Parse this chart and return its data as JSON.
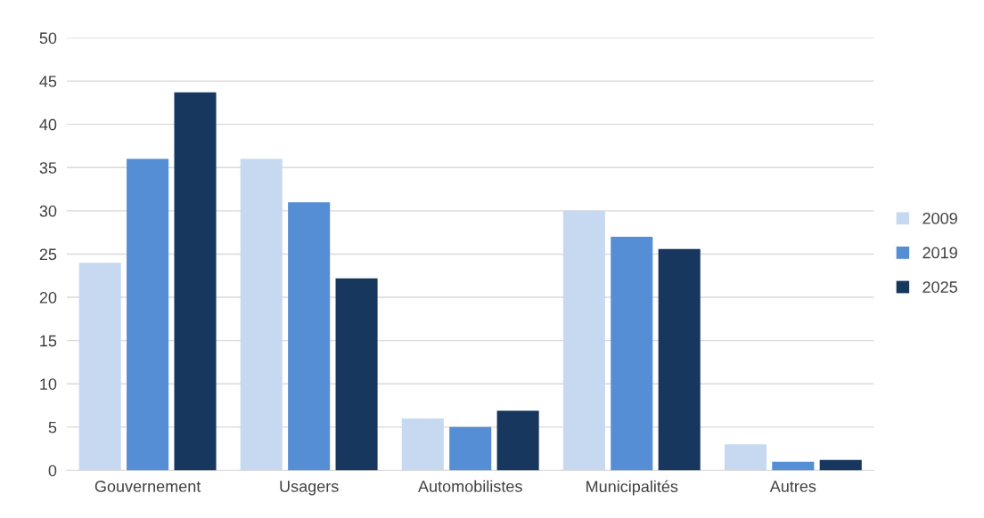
{
  "chart_data": {
    "type": "bar",
    "categories": [
      "Gouvernement",
      "Usagers",
      "Automobilistes",
      "Municipalités",
      "Autres"
    ],
    "series": [
      {
        "name": "2009",
        "color": "#c6d9f1",
        "values": [
          24,
          36,
          6,
          30,
          3
        ]
      },
      {
        "name": "2019",
        "color": "#558ed5",
        "values": [
          36,
          31,
          5,
          27,
          1
        ]
      },
      {
        "name": "2025",
        "color": "#17375e",
        "values": [
          43.7,
          22.2,
          6.9,
          25.6,
          1.2
        ]
      }
    ],
    "ylim": [
      0,
      50
    ],
    "yticks": [
      0,
      5,
      10,
      15,
      20,
      25,
      30,
      35,
      40,
      45,
      50
    ],
    "grid": "y",
    "legend": "right"
  }
}
